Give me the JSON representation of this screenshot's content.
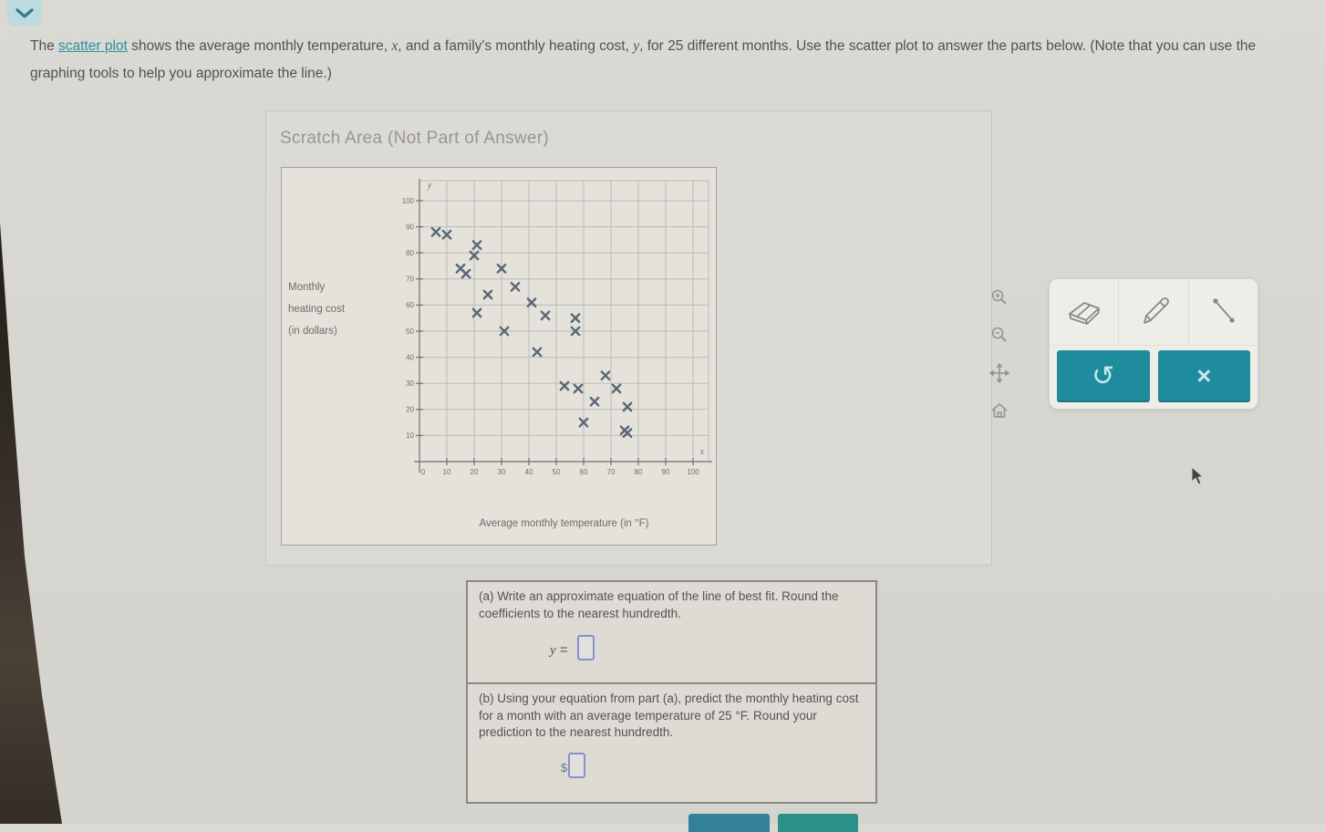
{
  "colors": {
    "accent_teal": "#1e8c9c",
    "link_teal": "#2e8fa0",
    "marker": "#5a6876",
    "page_bg": "#d8d6d1"
  },
  "intro": {
    "pre": "The ",
    "link": "scatter plot",
    "s1": " shows the average monthly temperature, ",
    "var_x": "x",
    "s2": ", and a family's monthly heating cost, ",
    "var_y": "y",
    "s3": ", for 25 different months. Use the scatter plot to answer the parts below. (Note that you can use the graphing tools to help you approximate the line.)"
  },
  "scratch": {
    "title": "Scratch Area (Not Part of Answer)"
  },
  "graph_tools": {
    "tools": [
      "zoom-in",
      "zoom-out",
      "move",
      "reset-view"
    ]
  },
  "toolbar": {
    "tools": [
      "eraser",
      "pencil",
      "line-segment"
    ],
    "undo_glyph": "↺",
    "clear_glyph": "×"
  },
  "part_a": {
    "text": "(a) Write an approximate equation of the line of best fit. Round the coefficients to the nearest hundredth.",
    "lhs": "y",
    "eq": "=",
    "input_value": ""
  },
  "part_b": {
    "text": "(b) Using your equation from part (a), predict the monthly heating cost for a month with an average temperature of 25 °F. Round your prediction to the nearest hundredth.",
    "currency": "$",
    "input_value": ""
  },
  "chart_data": {
    "type": "scatter",
    "title": "",
    "xlabel": "Average monthly temperature (in °F)",
    "ylabel": "Monthly heating cost (in dollars)",
    "ylabel_lines": [
      "Monthly",
      "heating cost",
      "(in dollars)"
    ],
    "axis_var_x": "x",
    "axis_var_y": "y",
    "xlim": [
      0,
      100
    ],
    "ylim": [
      0,
      100
    ],
    "x_ticks": [
      10,
      20,
      30,
      40,
      50,
      60,
      70,
      80,
      90,
      100
    ],
    "y_ticks": [
      10,
      20,
      30,
      40,
      50,
      60,
      70,
      80,
      90,
      100
    ],
    "origin_label": "0",
    "grid": true,
    "legend": false,
    "points": [
      [
        6,
        88
      ],
      [
        10,
        87
      ],
      [
        21,
        83
      ],
      [
        20,
        79
      ],
      [
        15,
        74
      ],
      [
        17,
        72
      ],
      [
        30,
        74
      ],
      [
        35,
        67
      ],
      [
        25,
        64
      ],
      [
        41,
        61
      ],
      [
        21,
        57
      ],
      [
        46,
        56
      ],
      [
        57,
        55
      ],
      [
        31,
        50
      ],
      [
        57,
        50
      ],
      [
        43,
        42
      ],
      [
        68,
        33
      ],
      [
        53,
        29
      ],
      [
        58,
        28
      ],
      [
        72,
        28
      ],
      [
        64,
        23
      ],
      [
        76,
        21
      ],
      [
        60,
        15
      ],
      [
        75,
        12
      ],
      [
        76,
        11
      ]
    ]
  }
}
